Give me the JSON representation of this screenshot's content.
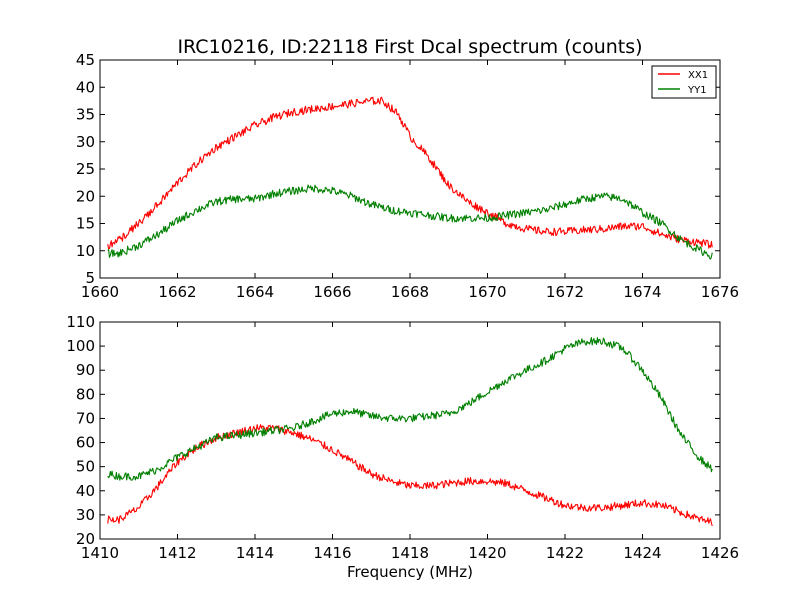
{
  "figure": {
    "title": "IRC10216, ID:22118 First Dcal spectrum (counts)",
    "colors": {
      "XX1": "#ff0000",
      "YY1": "#008000"
    }
  },
  "chart_data": [
    {
      "type": "line",
      "title": "IRC10216, ID:22118 First Dcal spectrum (counts)",
      "xlabel": "",
      "ylabel": "",
      "xlim": [
        1660,
        1676
      ],
      "ylim": [
        5,
        45
      ],
      "xticks": [
        1660,
        1662,
        1664,
        1666,
        1668,
        1670,
        1672,
        1674,
        1676
      ],
      "yticks": [
        5,
        10,
        15,
        20,
        25,
        30,
        35,
        40,
        45
      ],
      "legend": {
        "position": "top-right",
        "entries": [
          "XX1",
          "YY1"
        ]
      },
      "grid": false,
      "noisy": true,
      "series": [
        {
          "name": "XX1",
          "color": "#ff0000",
          "x": [
            1660.2,
            1660.5,
            1661,
            1661.5,
            1662,
            1662.5,
            1663,
            1663.5,
            1664,
            1664.5,
            1665,
            1665.5,
            1666,
            1666.5,
            1667,
            1667.3,
            1667.7,
            1668,
            1668.5,
            1669,
            1669.5,
            1670,
            1670.5,
            1671,
            1671.5,
            1672,
            1672.5,
            1673,
            1673.5,
            1674,
            1674.5,
            1675,
            1675.5,
            1675.8
          ],
          "values": [
            11,
            12,
            15,
            18.5,
            22.5,
            26,
            29,
            31,
            33,
            34.5,
            35.5,
            36,
            36.5,
            37,
            37.5,
            37.5,
            35,
            31,
            27,
            22,
            19,
            17,
            15,
            14,
            13.5,
            13.5,
            13.8,
            14,
            14.5,
            14.5,
            13,
            12,
            11.5,
            11
          ]
        },
        {
          "name": "YY1",
          "color": "#008000",
          "x": [
            1660.2,
            1660.5,
            1661,
            1661.5,
            1662,
            1662.5,
            1663,
            1663.5,
            1664,
            1664.5,
            1665,
            1665.5,
            1666,
            1666.5,
            1667,
            1667.5,
            1668,
            1668.5,
            1669,
            1669.5,
            1670,
            1670.5,
            1671,
            1671.5,
            1672,
            1672.5,
            1673,
            1673.5,
            1674,
            1674.5,
            1675,
            1675.5,
            1675.8
          ],
          "values": [
            9.5,
            9.5,
            11,
            13,
            15.5,
            17.5,
            19,
            19.5,
            19.5,
            20.5,
            21,
            21.5,
            21,
            20,
            18.5,
            17.5,
            17,
            16.5,
            16,
            16,
            16,
            16.5,
            17,
            17.5,
            18.5,
            19.5,
            20,
            19.5,
            17,
            15,
            12,
            10,
            9
          ]
        }
      ]
    },
    {
      "type": "line",
      "title": "",
      "xlabel": "Frequency (MHz)",
      "ylabel": "",
      "xlim": [
        1410,
        1426
      ],
      "ylim": [
        20,
        110
      ],
      "xticks": [
        1410,
        1412,
        1414,
        1416,
        1418,
        1420,
        1422,
        1424,
        1426
      ],
      "yticks": [
        20,
        30,
        40,
        50,
        60,
        70,
        80,
        90,
        100,
        110
      ],
      "legend": null,
      "grid": false,
      "noisy": true,
      "series": [
        {
          "name": "XX1",
          "color": "#ff0000",
          "x": [
            1410.2,
            1410.5,
            1411,
            1411.5,
            1412,
            1412.5,
            1413,
            1413.5,
            1414,
            1414.5,
            1415,
            1415.5,
            1416,
            1416.5,
            1417,
            1417.5,
            1418,
            1418.5,
            1419,
            1419.5,
            1420,
            1420.5,
            1421,
            1421.5,
            1422,
            1422.5,
            1423,
            1423.5,
            1424,
            1424.5,
            1425,
            1425.5,
            1425.8
          ],
          "values": [
            28,
            28,
            33,
            42,
            52,
            58,
            62,
            64,
            66,
            66,
            64,
            61,
            57,
            52,
            47,
            44,
            42,
            42,
            43,
            44,
            44,
            43,
            40,
            37,
            34,
            33,
            33,
            34,
            35,
            34,
            31,
            28,
            27
          ]
        },
        {
          "name": "YY1",
          "color": "#008000",
          "x": [
            1410.2,
            1410.5,
            1411,
            1411.5,
            1412,
            1412.5,
            1413,
            1413.5,
            1414,
            1414.5,
            1415,
            1415.5,
            1416,
            1416.5,
            1417,
            1417.5,
            1418,
            1418.5,
            1419,
            1419.5,
            1420,
            1420.5,
            1421,
            1421.5,
            1422,
            1422.5,
            1423,
            1423.5,
            1424,
            1424.5,
            1425,
            1425.5,
            1425.8
          ],
          "values": [
            47,
            46,
            46,
            49,
            54,
            58,
            62,
            63,
            64,
            65,
            66,
            69,
            72,
            73,
            71,
            70,
            70,
            71,
            72,
            76,
            81,
            86,
            90,
            94,
            99,
            102,
            102,
            99,
            90,
            78,
            63,
            53,
            49
          ]
        }
      ]
    }
  ]
}
